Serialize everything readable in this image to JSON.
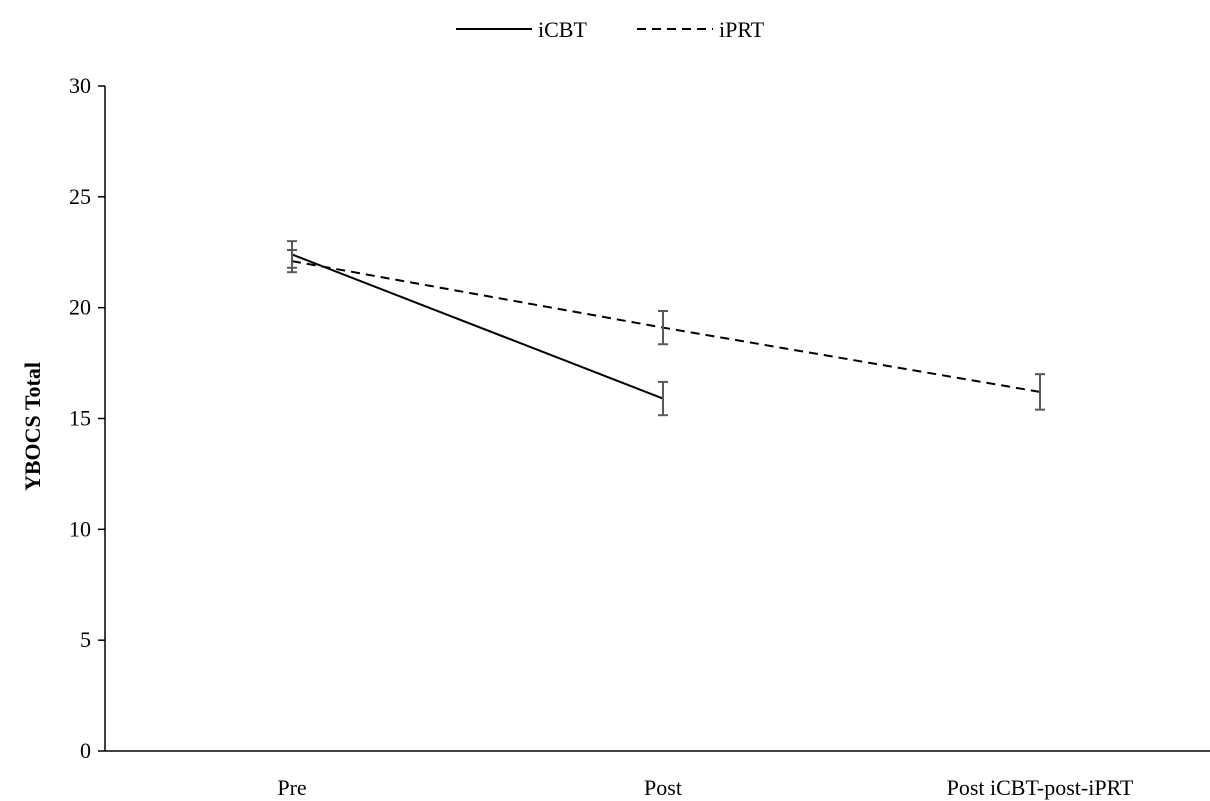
{
  "chart_data": {
    "type": "line",
    "categories": [
      "Pre",
      "Post",
      "Post iCBT-post-iPRT"
    ],
    "series": [
      {
        "name": "iCBT",
        "values": [
          22.4,
          15.9,
          null
        ],
        "error": [
          0.6,
          0.75,
          null
        ],
        "line_style": "solid",
        "color": "#000000"
      },
      {
        "name": "iPRT",
        "values": [
          22.1,
          19.1,
          16.2
        ],
        "error": [
          0.5,
          0.75,
          0.8
        ],
        "line_style": "dashed",
        "color": "#000000"
      }
    ],
    "ylabel": "YBOCS Total",
    "xlabel": "",
    "ylim": [
      0,
      30
    ],
    "yticks": [
      0,
      5,
      10,
      15,
      20,
      25,
      30
    ],
    "grid": false,
    "legend_position": "top-center",
    "error_bar_color": "#595959"
  }
}
